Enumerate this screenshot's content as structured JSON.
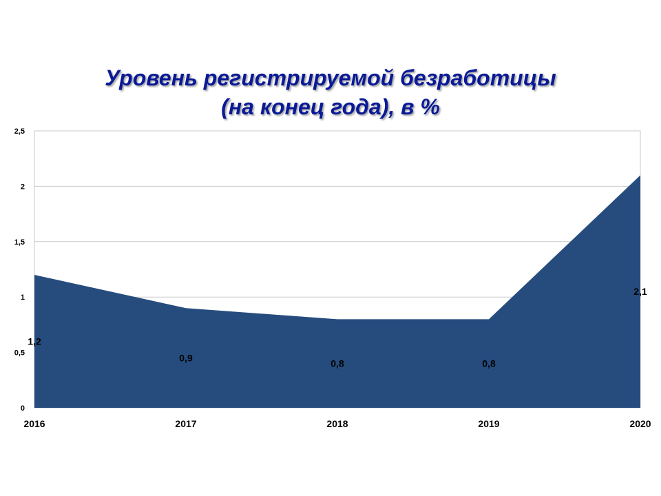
{
  "chart_data": {
    "type": "area",
    "title_line1": "Уровень регистрируемой безработицы",
    "title_line2": "(на конец года), в %",
    "categories": [
      "2016",
      "2017",
      "2018",
      "2019",
      "2020"
    ],
    "values": [
      1.2,
      0.9,
      0.8,
      0.8,
      2.1
    ],
    "value_labels": [
      "1,2",
      "0,9",
      "0,8",
      "0,8",
      "2,1"
    ],
    "ylim": [
      0,
      2.5
    ],
    "y_ticks": [
      0,
      0.5,
      1,
      1.5,
      2,
      2.5
    ],
    "y_tick_labels": [
      "0",
      "0,5",
      "1",
      "1,5",
      "2",
      "2,5"
    ],
    "grid": true,
    "colors": {
      "area": "#264c7e",
      "grid": "#c8c8c8",
      "title": "#0a1a96"
    }
  }
}
